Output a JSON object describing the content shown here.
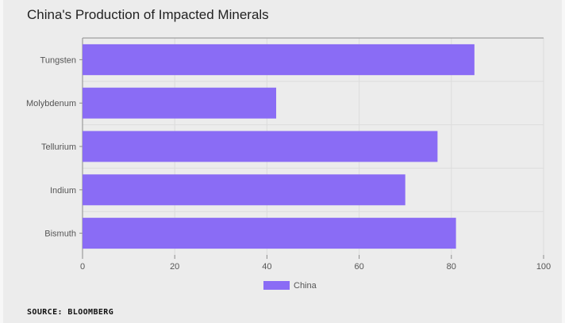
{
  "title": "China's Production of Impacted Minerals",
  "source": "SOURCE: BLOOMBERG",
  "colors": {
    "bar": "#8a6cf5",
    "grid": "#dcdcdc",
    "axis": "#8c8c8c",
    "tick_text": "#555555"
  },
  "chart_data": {
    "type": "bar",
    "orientation": "horizontal",
    "categories": [
      "Tungsten",
      "Molybdenum",
      "Tellurium",
      "Indium",
      "Bismuth"
    ],
    "series": [
      {
        "name": "China",
        "values": [
          85,
          42,
          77,
          70,
          81
        ]
      }
    ],
    "xlim": [
      0,
      100
    ],
    "xticks": [
      0,
      20,
      40,
      60,
      80,
      100
    ],
    "xtick_labels": [
      "0",
      "20",
      "40",
      "60",
      "80",
      "100"
    ],
    "grid": true,
    "legend": "bottom-center"
  }
}
